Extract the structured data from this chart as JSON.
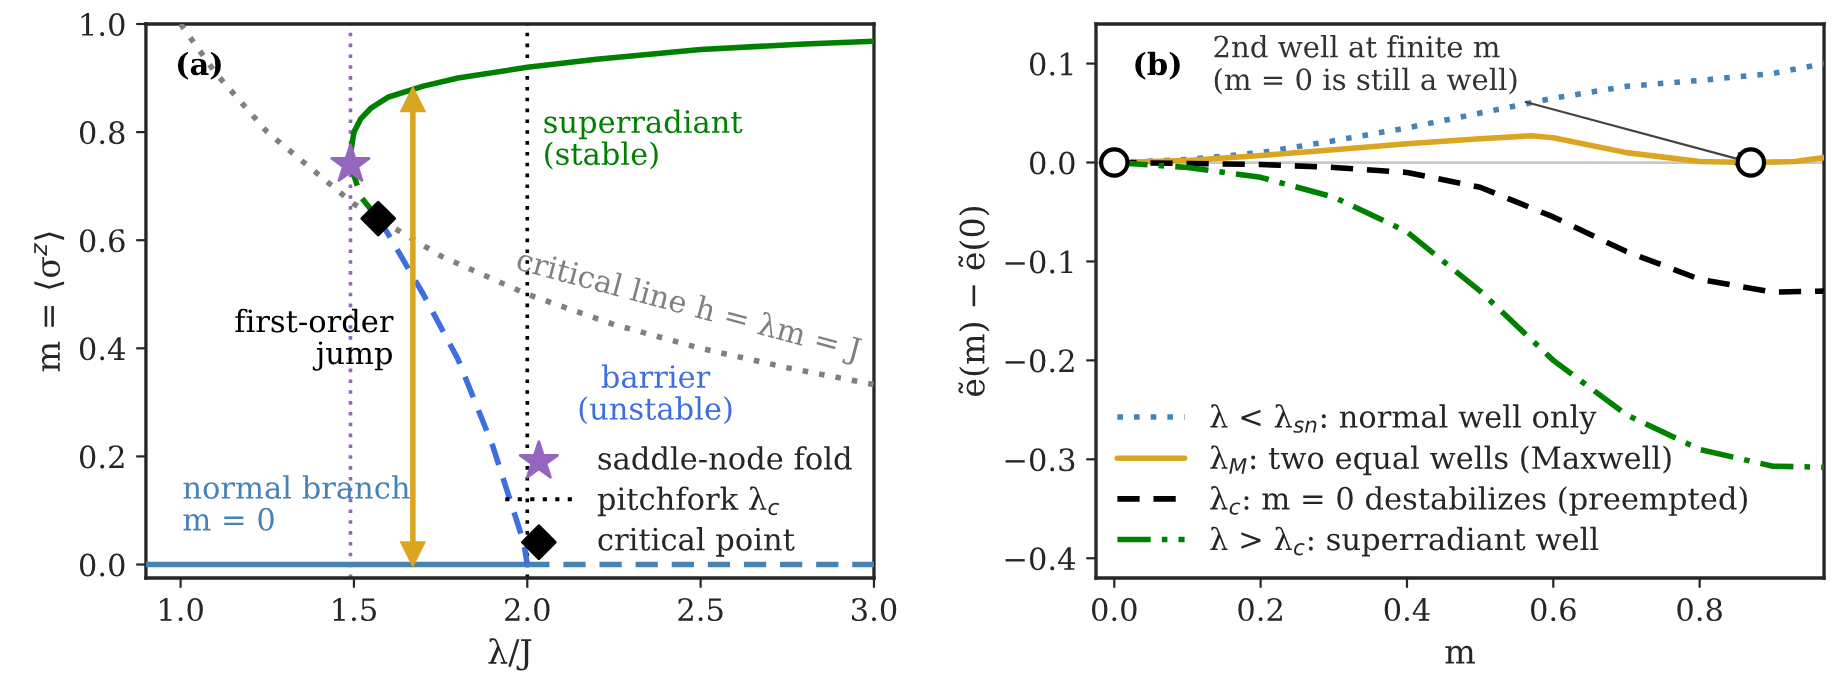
{
  "chart_data": [
    {
      "type": "line",
      "xlabel": "λ/J",
      "ylabel": "m = ⟨σ$^{z}$⟩",
      "xlim": [
        0.9,
        3.0
      ],
      "ylim": [
        -0.025,
        1.0
      ],
      "xticks": [
        {
          "value": 1.0,
          "label": "1.0"
        },
        1.5,
        {
          "value": 2.0,
          "label": "2.0"
        },
        2.5,
        {
          "value": 3.0,
          "label": "3.0"
        }
      ],
      "yticks": [
        {
          "value": 0.0,
          "label": "0.0"
        },
        0.2,
        0.4,
        0.6,
        0.8,
        {
          "value": 1.0,
          "label": "1.0"
        }
      ],
      "grid": false,
      "legend": "bottom right",
      "annotations": [
        "(a)",
        "superradiant\n(stable)",
        "barrier\n(unstable)",
        "critical line h = λm = J",
        "first-order\njump",
        "normal branch\nm = 0"
      ],
      "ref_lines": [
        {
          "axis": "x",
          "value": 1.49,
          "color": "#9467bd",
          "line_style": "dotted"
        },
        {
          "axis": "x",
          "value": 2.0,
          "label": "pitchfork λ$_{c}$",
          "color": "#000000",
          "line_style": "dotted"
        }
      ],
      "series": [
        {
          "color": "#808080",
          "line_style": "dotted",
          "x": [
            1.0,
            1.1,
            1.25,
            1.5,
            1.75,
            2.0,
            2.25,
            2.5,
            2.75,
            3.0
          ],
          "values": [
            1.0,
            0.91,
            0.8,
            0.667,
            0.571,
            0.5,
            0.444,
            0.4,
            0.364,
            0.333
          ]
        },
        {
          "color": "#4682b4",
          "line_style": "solid",
          "x": [
            0.9,
            2.0
          ],
          "values": [
            0.0,
            0.0
          ]
        },
        {
          "color": "#4682b4",
          "line_style": "dashed",
          "x": [
            2.0,
            3.0
          ],
          "values": [
            0.0,
            0.0
          ]
        },
        {
          "color": "#008000",
          "line_style": "solid",
          "x": [
            1.49,
            1.5,
            1.52,
            1.55,
            1.6,
            1.7,
            1.8,
            2.0,
            2.2,
            2.5,
            2.8,
            3.0
          ],
          "values": [
            0.76,
            0.8,
            0.825,
            0.845,
            0.865,
            0.885,
            0.9,
            0.92,
            0.935,
            0.953,
            0.963,
            0.968
          ]
        },
        {
          "color": "#008000",
          "line_style": "dashed",
          "x": [
            1.49,
            1.52,
            1.57
          ],
          "values": [
            0.74,
            0.68,
            0.64
          ]
        },
        {
          "color": "#3d6fe0",
          "line_style": "dashed",
          "x": [
            1.57,
            1.6,
            1.7,
            1.8,
            1.9,
            1.95,
            1.99,
            2.0
          ],
          "values": [
            0.64,
            0.61,
            0.5,
            0.38,
            0.22,
            0.12,
            0.04,
            0.0
          ]
        },
        {
          "color": "#daa520",
          "line_style": "solid",
          "marker": "triangle",
          "x": [
            1.67,
            1.67
          ],
          "values": [
            0.02,
            0.86
          ]
        },
        {
          "type": "scatter",
          "name": "saddle-node fold",
          "color": "#9467bd",
          "marker": "star",
          "x": [
            1.49
          ],
          "values": [
            0.74
          ]
        },
        {
          "type": "scatter",
          "name": "critical point",
          "color": "#000000",
          "marker": "diamond",
          "x": [
            1.57
          ],
          "values": [
            0.64
          ]
        }
      ]
    },
    {
      "type": "line",
      "xlabel": "m",
      "ylabel": "ẽ(m) − ẽ(0)",
      "xlim": [
        -0.025,
        0.97
      ],
      "ylim": [
        -0.42,
        0.14
      ],
      "xticks": [
        {
          "value": 0.0,
          "label": "0.0"
        },
        0.2,
        0.4,
        0.6,
        0.8
      ],
      "yticks": [
        {
          "value": -0.4,
          "label": "−0.4"
        },
        {
          "value": -0.3,
          "label": "−0.3"
        },
        {
          "value": -0.2,
          "label": "−0.2"
        },
        {
          "value": -0.1,
          "label": "−0.1"
        },
        {
          "value": 0.0,
          "label": "0.0"
        },
        0.1
      ],
      "grid": false,
      "legend": "bottom left",
      "annotations": [
        "(b)",
        {
          "text": "2nd well at finite m\n(m = 0 is still a well)",
          "x": 0.87,
          "y": 0.0
        }
      ],
      "ref_lines": [
        {
          "axis": "y",
          "value": 0.0,
          "color": "#c8c8c8",
          "line_style": "solid"
        }
      ],
      "series": [
        {
          "name": "λ < λ$_{sn}$: normal well only",
          "color": "#4682b4",
          "line_style": "dotted",
          "x": [
            0.0,
            0.1,
            0.2,
            0.3,
            0.4,
            0.5,
            0.6,
            0.7,
            0.8,
            0.9,
            0.97
          ],
          "values": [
            0.0,
            0.003,
            0.01,
            0.022,
            0.035,
            0.05,
            0.065,
            0.077,
            0.083,
            0.09,
            0.1
          ]
        },
        {
          "name": "λ$_{M}$: two equal wells (Maxwell)",
          "color": "#daa520",
          "line_style": "solid",
          "x": [
            0.0,
            0.1,
            0.2,
            0.3,
            0.4,
            0.5,
            0.57,
            0.6,
            0.7,
            0.8,
            0.87,
            0.93,
            0.97
          ],
          "values": [
            0.0,
            0.002,
            0.007,
            0.013,
            0.019,
            0.024,
            0.027,
            0.025,
            0.01,
            0.001,
            0.0,
            0.001,
            0.005
          ]
        },
        {
          "name": "λ$_{c}$: m = 0 destabilizes (preempted)",
          "color": "#000000",
          "line_style": "dashed",
          "x": [
            0.0,
            0.2,
            0.3,
            0.4,
            0.5,
            0.6,
            0.7,
            0.8,
            0.9,
            0.97
          ],
          "values": [
            0.0,
            -0.002,
            -0.005,
            -0.01,
            -0.025,
            -0.055,
            -0.09,
            -0.118,
            -0.131,
            -0.13
          ]
        },
        {
          "name": "λ > λ$_{c}$: superradiant well",
          "color": "#008000",
          "line_style": "dashdot",
          "x": [
            0.0,
            0.1,
            0.2,
            0.3,
            0.4,
            0.5,
            0.6,
            0.7,
            0.8,
            0.9,
            0.97
          ],
          "values": [
            0.0,
            -0.005,
            -0.015,
            -0.035,
            -0.07,
            -0.13,
            -0.2,
            -0.255,
            -0.29,
            -0.307,
            -0.308
          ]
        },
        {
          "type": "scatter",
          "color": "#000000",
          "marker": "circle",
          "x": [
            0.0,
            0.87
          ],
          "values": [
            0.0,
            0.0
          ]
        }
      ]
    }
  ]
}
